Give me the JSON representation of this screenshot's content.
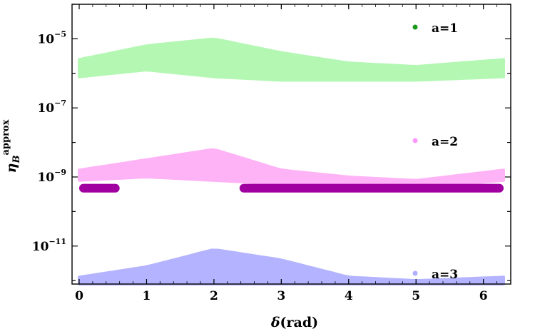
{
  "chart_data": {
    "type": "scatter",
    "xlabel_symbol": "δ",
    "xlabel_unit": "(rad)",
    "ylabel_symbol": "η",
    "ylabel_sub": "B",
    "ylabel_sup": "approx",
    "xlim": [
      0,
      6.3
    ],
    "ylim_log10": [
      -12.1,
      -4.0
    ],
    "yscale": "log",
    "x_ticks": [
      "0",
      "1",
      "2",
      "3",
      "4",
      "5",
      "6"
    ],
    "y_ticks": [
      {
        "base": "10",
        "exp": "−5",
        "log": -5
      },
      {
        "base": "10",
        "exp": "−7",
        "log": -7
      },
      {
        "base": "10",
        "exp": "−9",
        "log": -9
      },
      {
        "base": "10",
        "exp": "−11",
        "log": -11
      }
    ],
    "legend_position": "right",
    "series": [
      {
        "name": "a=1",
        "color": "#1a9a1a",
        "band_color": "#b3f7b3",
        "band_low_log10": [
          -6.1,
          -5.9,
          -6.1,
          -6.2,
          -6.2,
          -6.2,
          -6.1
        ],
        "band_high_log10": [
          -5.6,
          -5.2,
          -5.0,
          -5.4,
          -5.7,
          -5.8,
          -5.6
        ]
      },
      {
        "name": "a=2",
        "color": "#ff99ff",
        "band_color": "#ffb3f7",
        "band_low_log10": [
          -9.1,
          -9.0,
          -9.1,
          -9.2,
          -9.3,
          -9.3,
          -9.1
        ],
        "band_high_log10": [
          -8.8,
          -8.5,
          -8.2,
          -8.8,
          -9.0,
          -9.1,
          -8.8
        ],
        "dense_color": "#a000a0",
        "dense_segments": [
          [
            0,
            0.6
          ],
          [
            2.38,
            6.3
          ]
        ],
        "dense_log10": [
          -9.2,
          -9.45
        ]
      },
      {
        "name": "a=3",
        "color": "#b0b0ff",
        "band_color": "#b3b3ff",
        "band_low_log10": [
          -12.1,
          -12.1,
          -12.1,
          -12.1,
          -12.1,
          -12.1,
          -12.1
        ],
        "band_high_log10": [
          -11.9,
          -11.6,
          -11.1,
          -11.4,
          -11.9,
          -12.0,
          -11.9
        ]
      }
    ]
  }
}
